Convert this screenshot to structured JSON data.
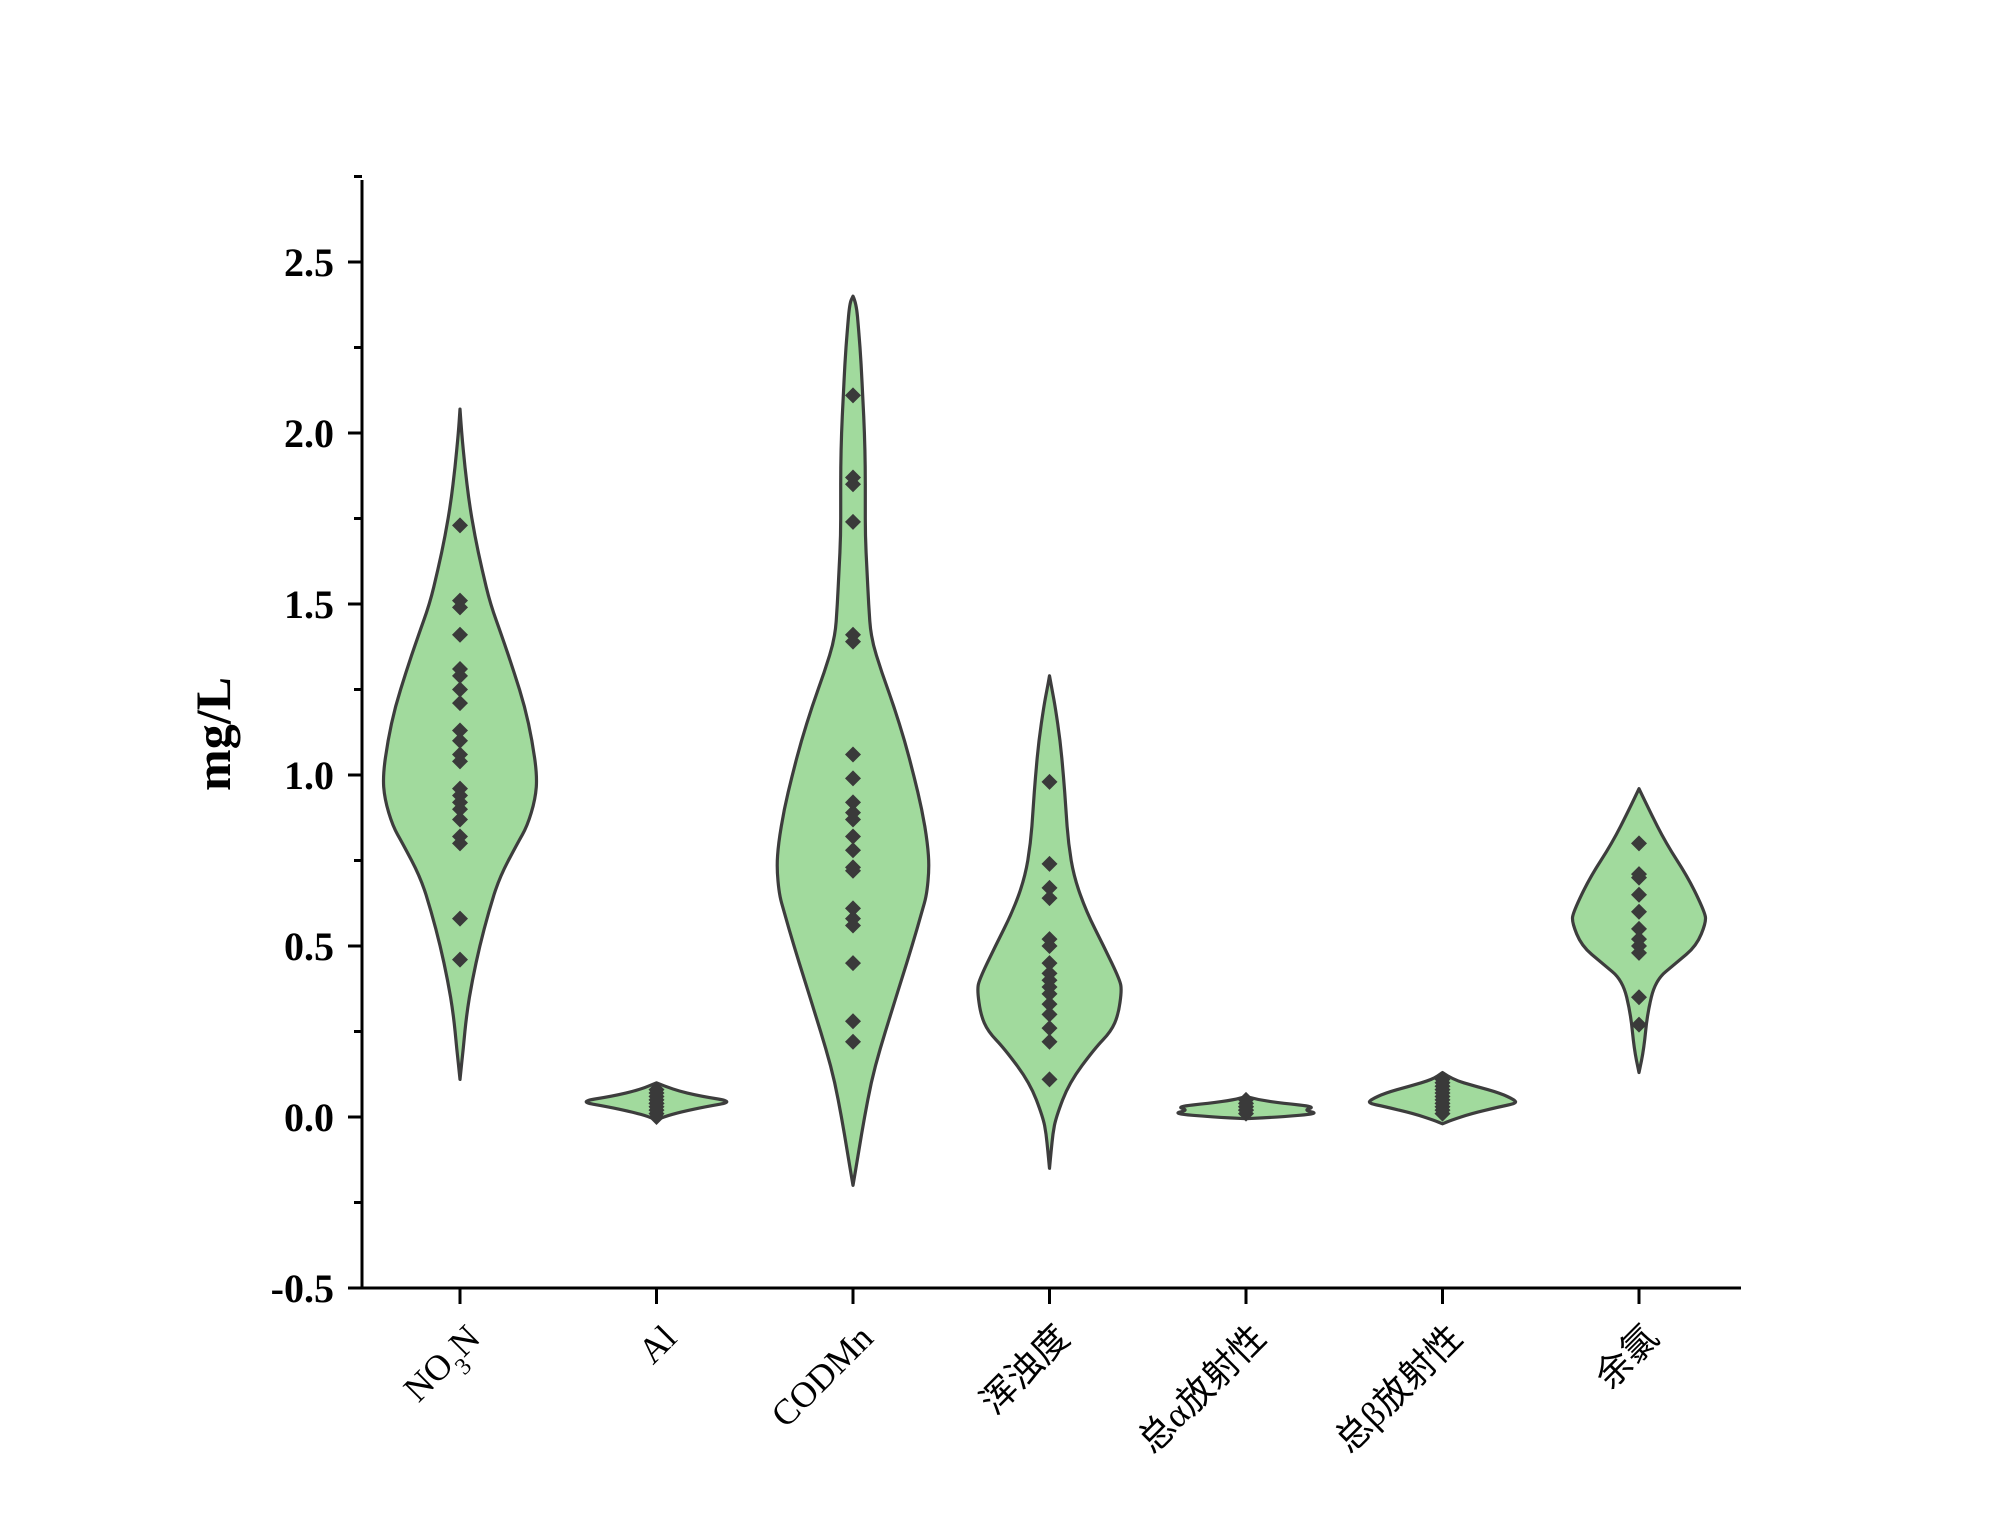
{
  "chart_data": {
    "type": "violin",
    "title": "",
    "ylabel": "mg/L",
    "xlabel": "",
    "ylim": [
      -0.5,
      2.75
    ],
    "yticks": [
      -0.5,
      0.0,
      0.5,
      1.0,
      1.5,
      2.0,
      2.5
    ],
    "ytick_labels": [
      "-0.5",
      "0.0",
      "0.5",
      "1.0",
      "1.5",
      "2.0",
      "2.5"
    ],
    "colors": {
      "fill": "#a1da9d",
      "outline": "#3d3d3d",
      "point": "#3a3a3a"
    },
    "categories": [
      {
        "name": "NO3N",
        "label_main": "NO",
        "label_sub": "3",
        "label_tail": "N",
        "values": [
          1.73,
          1.51,
          1.49,
          1.41,
          1.31,
          1.29,
          1.25,
          1.21,
          1.13,
          1.1,
          1.06,
          1.04,
          0.96,
          0.94,
          0.92,
          0.9,
          0.87,
          0.82,
          0.8,
          0.58,
          0.46
        ],
        "kde": [
          [
            2.07,
            0
          ],
          [
            2.0,
            0.02
          ],
          [
            1.9,
            0.06
          ],
          [
            1.8,
            0.11
          ],
          [
            1.7,
            0.18
          ],
          [
            1.6,
            0.27
          ],
          [
            1.5,
            0.37
          ],
          [
            1.4,
            0.52
          ],
          [
            1.3,
            0.66
          ],
          [
            1.2,
            0.79
          ],
          [
            1.1,
            0.88
          ],
          [
            1.0,
            0.94
          ],
          [
            0.93,
            0.92
          ],
          [
            0.85,
            0.82
          ],
          [
            0.8,
            0.7
          ],
          [
            0.7,
            0.48
          ],
          [
            0.6,
            0.35
          ],
          [
            0.5,
            0.24
          ],
          [
            0.4,
            0.15
          ],
          [
            0.3,
            0.08
          ],
          [
            0.2,
            0.04
          ],
          [
            0.11,
            0
          ]
        ]
      },
      {
        "name": "Al",
        "label_main": "Al",
        "values": [
          0.08,
          0.07,
          0.06,
          0.05,
          0.04,
          0.04,
          0.03,
          0.02,
          0.01,
          0.0
        ],
        "kde": [
          [
            0.1,
            0
          ],
          [
            0.08,
            0.2
          ],
          [
            0.06,
            0.55
          ],
          [
            0.045,
            0.95
          ],
          [
            0.03,
            0.6
          ],
          [
            0.015,
            0.3
          ],
          [
            0.0,
            0.08
          ],
          [
            -0.01,
            0
          ]
        ]
      },
      {
        "name": "CODMn",
        "label_main": "CODMn",
        "values": [
          2.11,
          1.87,
          1.85,
          1.74,
          1.41,
          1.39,
          1.06,
          0.99,
          0.92,
          0.89,
          0.87,
          0.82,
          0.78,
          0.73,
          0.72,
          0.61,
          0.58,
          0.56,
          0.45,
          0.28,
          0.22
        ],
        "kde": [
          [
            2.4,
            0
          ],
          [
            2.38,
            0.04
          ],
          [
            2.3,
            0.07
          ],
          [
            2.2,
            0.1
          ],
          [
            2.1,
            0.12
          ],
          [
            2.0,
            0.14
          ],
          [
            1.9,
            0.15
          ],
          [
            1.8,
            0.15
          ],
          [
            1.7,
            0.15
          ],
          [
            1.6,
            0.17
          ],
          [
            1.5,
            0.19
          ],
          [
            1.4,
            0.22
          ],
          [
            1.3,
            0.35
          ],
          [
            1.2,
            0.5
          ],
          [
            1.1,
            0.63
          ],
          [
            1.0,
            0.74
          ],
          [
            0.9,
            0.84
          ],
          [
            0.8,
            0.91
          ],
          [
            0.73,
            0.93
          ],
          [
            0.65,
            0.9
          ],
          [
            0.6,
            0.84
          ],
          [
            0.5,
            0.72
          ],
          [
            0.4,
            0.59
          ],
          [
            0.3,
            0.46
          ],
          [
            0.2,
            0.33
          ],
          [
            0.1,
            0.22
          ],
          [
            0.0,
            0.14
          ],
          [
            -0.1,
            0.07
          ],
          [
            -0.2,
            0
          ]
        ]
      },
      {
        "name": "turbidity",
        "label_main": "浑浊度",
        "values": [
          0.98,
          0.74,
          0.67,
          0.64,
          0.52,
          0.5,
          0.45,
          0.42,
          0.4,
          0.38,
          0.36,
          0.33,
          0.3,
          0.26,
          0.22,
          0.11
        ],
        "kde": [
          [
            1.29,
            0
          ],
          [
            1.25,
            0.03
          ],
          [
            1.2,
            0.07
          ],
          [
            1.1,
            0.13
          ],
          [
            1.0,
            0.17
          ],
          [
            0.9,
            0.2
          ],
          [
            0.8,
            0.23
          ],
          [
            0.7,
            0.3
          ],
          [
            0.6,
            0.45
          ],
          [
            0.5,
            0.66
          ],
          [
            0.4,
            0.86
          ],
          [
            0.37,
            0.88
          ],
          [
            0.3,
            0.84
          ],
          [
            0.25,
            0.75
          ],
          [
            0.2,
            0.55
          ],
          [
            0.1,
            0.24
          ],
          [
            0.0,
            0.08
          ],
          [
            -0.05,
            0.04
          ],
          [
            -0.1,
            0.02
          ],
          [
            -0.15,
            0
          ]
        ]
      },
      {
        "name": "total-alpha",
        "label_main": "总α放射性",
        "values": [
          0.05,
          0.04,
          0.03,
          0.03,
          0.02,
          0.02,
          0.01
        ],
        "kde": [
          [
            0.06,
            0
          ],
          [
            0.05,
            0.15
          ],
          [
            0.04,
            0.45
          ],
          [
            0.03,
            0.85
          ],
          [
            0.02,
            0.7
          ],
          [
            0.01,
            0.9
          ],
          [
            0.0,
            0.4
          ],
          [
            -0.005,
            0
          ]
        ]
      },
      {
        "name": "total-beta",
        "label_main": "总β放射性",
        "values": [
          0.11,
          0.1,
          0.09,
          0.08,
          0.07,
          0.06,
          0.05,
          0.04,
          0.03,
          0.02,
          0.01
        ],
        "kde": [
          [
            0.13,
            0
          ],
          [
            0.11,
            0.12
          ],
          [
            0.09,
            0.4
          ],
          [
            0.07,
            0.7
          ],
          [
            0.05,
            0.88
          ],
          [
            0.04,
            0.9
          ],
          [
            0.03,
            0.7
          ],
          [
            0.01,
            0.35
          ],
          [
            -0.01,
            0.1
          ],
          [
            -0.02,
            0
          ]
        ]
      },
      {
        "name": "residual-chlorine",
        "label_main": "余氯",
        "values": [
          0.8,
          0.71,
          0.7,
          0.65,
          0.6,
          0.55,
          0.52,
          0.5,
          0.48,
          0.35,
          0.27
        ],
        "kde": [
          [
            0.96,
            0
          ],
          [
            0.9,
            0.12
          ],
          [
            0.8,
            0.33
          ],
          [
            0.7,
            0.6
          ],
          [
            0.6,
            0.8
          ],
          [
            0.57,
            0.82
          ],
          [
            0.5,
            0.7
          ],
          [
            0.45,
            0.45
          ],
          [
            0.4,
            0.2
          ],
          [
            0.3,
            0.1
          ],
          [
            0.2,
            0.06
          ],
          [
            0.13,
            0
          ]
        ]
      }
    ]
  }
}
